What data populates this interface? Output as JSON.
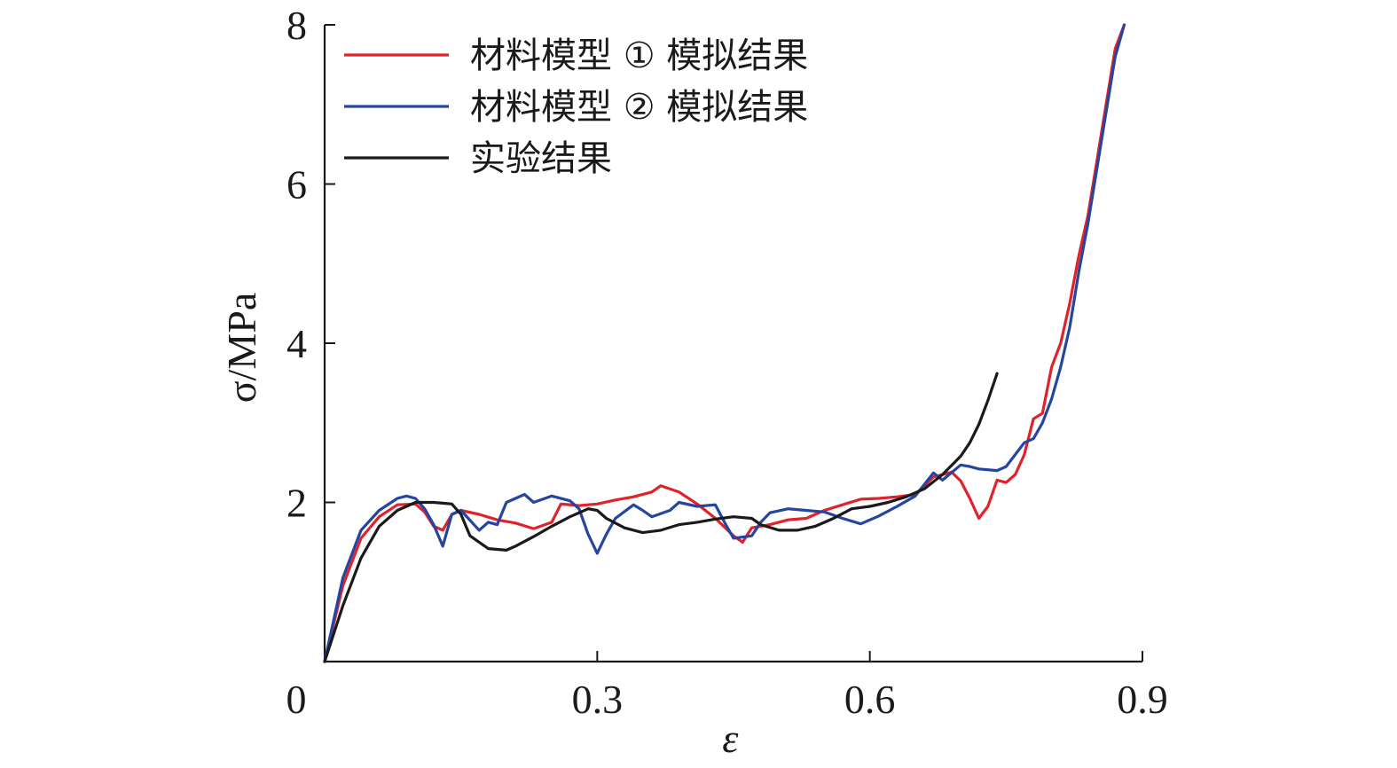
{
  "chart_data": {
    "type": "line",
    "title": "",
    "xlabel": "ε",
    "ylabel": "σ/MPa",
    "xlim": [
      0,
      0.9
    ],
    "ylim": [
      0,
      8
    ],
    "xticks": [
      0,
      0.3,
      0.6,
      0.9
    ],
    "xtick_labels": [
      "0",
      "0.3",
      "0.6",
      "0.9"
    ],
    "yticks": [
      2,
      4,
      6,
      8
    ],
    "ytick_labels": [
      "2",
      "4",
      "6",
      "8"
    ],
    "grid": false,
    "legend_position": "top-left",
    "series": [
      {
        "name": "材料模型 ① 模拟结果",
        "color": "#e0232b",
        "points": [
          [
            0.0,
            0.0
          ],
          [
            0.02,
            0.95
          ],
          [
            0.04,
            1.55
          ],
          [
            0.06,
            1.82
          ],
          [
            0.08,
            1.97
          ],
          [
            0.1,
            1.98
          ],
          [
            0.11,
            1.88
          ],
          [
            0.12,
            1.7
          ],
          [
            0.13,
            1.65
          ],
          [
            0.14,
            1.85
          ],
          [
            0.15,
            1.9
          ],
          [
            0.17,
            1.85
          ],
          [
            0.19,
            1.78
          ],
          [
            0.21,
            1.74
          ],
          [
            0.23,
            1.67
          ],
          [
            0.25,
            1.75
          ],
          [
            0.26,
            1.98
          ],
          [
            0.28,
            1.96
          ],
          [
            0.3,
            1.98
          ],
          [
            0.32,
            2.03
          ],
          [
            0.34,
            2.07
          ],
          [
            0.36,
            2.13
          ],
          [
            0.37,
            2.21
          ],
          [
            0.39,
            2.13
          ],
          [
            0.41,
            1.98
          ],
          [
            0.43,
            1.8
          ],
          [
            0.45,
            1.58
          ],
          [
            0.46,
            1.5
          ],
          [
            0.47,
            1.68
          ],
          [
            0.49,
            1.72
          ],
          [
            0.51,
            1.78
          ],
          [
            0.53,
            1.8
          ],
          [
            0.55,
            1.9
          ],
          [
            0.57,
            1.97
          ],
          [
            0.59,
            2.04
          ],
          [
            0.61,
            2.05
          ],
          [
            0.63,
            2.07
          ],
          [
            0.65,
            2.1
          ],
          [
            0.67,
            2.32
          ],
          [
            0.69,
            2.38
          ],
          [
            0.7,
            2.27
          ],
          [
            0.71,
            2.05
          ],
          [
            0.72,
            1.8
          ],
          [
            0.73,
            1.95
          ],
          [
            0.74,
            2.28
          ],
          [
            0.75,
            2.25
          ],
          [
            0.76,
            2.35
          ],
          [
            0.77,
            2.6
          ],
          [
            0.78,
            3.05
          ],
          [
            0.79,
            3.12
          ],
          [
            0.8,
            3.7
          ],
          [
            0.81,
            4.0
          ],
          [
            0.82,
            4.5
          ],
          [
            0.83,
            5.1
          ],
          [
            0.84,
            5.6
          ],
          [
            0.85,
            6.3
          ],
          [
            0.86,
            7.0
          ],
          [
            0.87,
            7.7
          ],
          [
            0.88,
            8.0
          ]
        ]
      },
      {
        "name": "材料模型 ② 模拟结果",
        "color": "#2545a0",
        "points": [
          [
            0.0,
            0.0
          ],
          [
            0.02,
            1.05
          ],
          [
            0.04,
            1.65
          ],
          [
            0.06,
            1.9
          ],
          [
            0.08,
            2.05
          ],
          [
            0.09,
            2.08
          ],
          [
            0.1,
            2.05
          ],
          [
            0.11,
            1.92
          ],
          [
            0.12,
            1.72
          ],
          [
            0.13,
            1.45
          ],
          [
            0.14,
            1.85
          ],
          [
            0.15,
            1.9
          ],
          [
            0.17,
            1.65
          ],
          [
            0.18,
            1.75
          ],
          [
            0.19,
            1.72
          ],
          [
            0.2,
            2.0
          ],
          [
            0.22,
            2.1
          ],
          [
            0.23,
            2.0
          ],
          [
            0.25,
            2.08
          ],
          [
            0.27,
            2.02
          ],
          [
            0.28,
            1.92
          ],
          [
            0.29,
            1.6
          ],
          [
            0.3,
            1.36
          ],
          [
            0.31,
            1.6
          ],
          [
            0.32,
            1.8
          ],
          [
            0.34,
            1.97
          ],
          [
            0.35,
            1.9
          ],
          [
            0.36,
            1.82
          ],
          [
            0.38,
            1.9
          ],
          [
            0.39,
            2.0
          ],
          [
            0.41,
            1.95
          ],
          [
            0.43,
            1.97
          ],
          [
            0.44,
            1.75
          ],
          [
            0.45,
            1.55
          ],
          [
            0.47,
            1.58
          ],
          [
            0.48,
            1.75
          ],
          [
            0.49,
            1.87
          ],
          [
            0.51,
            1.92
          ],
          [
            0.53,
            1.9
          ],
          [
            0.55,
            1.88
          ],
          [
            0.57,
            1.8
          ],
          [
            0.59,
            1.73
          ],
          [
            0.61,
            1.83
          ],
          [
            0.63,
            1.95
          ],
          [
            0.65,
            2.08
          ],
          [
            0.67,
            2.37
          ],
          [
            0.68,
            2.28
          ],
          [
            0.7,
            2.47
          ],
          [
            0.71,
            2.45
          ],
          [
            0.72,
            2.42
          ],
          [
            0.74,
            2.4
          ],
          [
            0.75,
            2.45
          ],
          [
            0.76,
            2.6
          ],
          [
            0.77,
            2.75
          ],
          [
            0.78,
            2.8
          ],
          [
            0.79,
            3.0
          ],
          [
            0.8,
            3.3
          ],
          [
            0.81,
            3.7
          ],
          [
            0.82,
            4.2
          ],
          [
            0.83,
            4.9
          ],
          [
            0.84,
            5.5
          ],
          [
            0.85,
            6.2
          ],
          [
            0.86,
            6.9
          ],
          [
            0.87,
            7.6
          ],
          [
            0.88,
            8.0
          ]
        ]
      },
      {
        "name": "实验结果",
        "color": "#1a1a1a",
        "points": [
          [
            0.0,
            0.0
          ],
          [
            0.02,
            0.7
          ],
          [
            0.04,
            1.3
          ],
          [
            0.06,
            1.7
          ],
          [
            0.08,
            1.9
          ],
          [
            0.1,
            2.0
          ],
          [
            0.12,
            2.0
          ],
          [
            0.14,
            1.98
          ],
          [
            0.15,
            1.85
          ],
          [
            0.16,
            1.58
          ],
          [
            0.18,
            1.42
          ],
          [
            0.2,
            1.4
          ],
          [
            0.21,
            1.45
          ],
          [
            0.23,
            1.57
          ],
          [
            0.25,
            1.7
          ],
          [
            0.27,
            1.82
          ],
          [
            0.29,
            1.92
          ],
          [
            0.3,
            1.9
          ],
          [
            0.31,
            1.8
          ],
          [
            0.33,
            1.68
          ],
          [
            0.35,
            1.62
          ],
          [
            0.37,
            1.65
          ],
          [
            0.39,
            1.72
          ],
          [
            0.41,
            1.75
          ],
          [
            0.43,
            1.79
          ],
          [
            0.45,
            1.82
          ],
          [
            0.47,
            1.8
          ],
          [
            0.48,
            1.72
          ],
          [
            0.5,
            1.65
          ],
          [
            0.52,
            1.65
          ],
          [
            0.54,
            1.7
          ],
          [
            0.56,
            1.8
          ],
          [
            0.58,
            1.92
          ],
          [
            0.6,
            1.95
          ],
          [
            0.62,
            2.0
          ],
          [
            0.64,
            2.07
          ],
          [
            0.66,
            2.17
          ],
          [
            0.68,
            2.35
          ],
          [
            0.7,
            2.58
          ],
          [
            0.71,
            2.75
          ],
          [
            0.72,
            2.98
          ],
          [
            0.73,
            3.28
          ],
          [
            0.74,
            3.62
          ]
        ]
      }
    ]
  }
}
